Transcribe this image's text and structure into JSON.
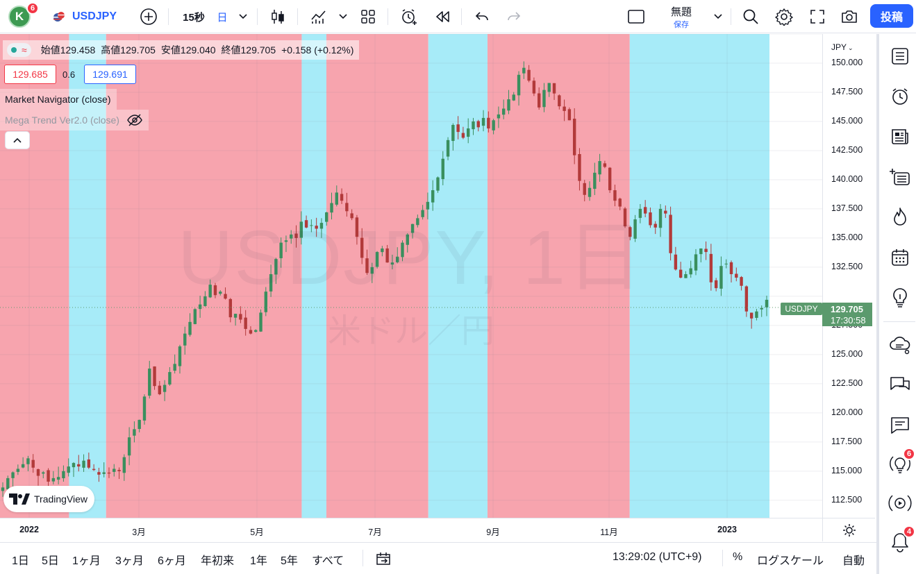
{
  "toolbar": {
    "avatar_letter": "K",
    "avatar_badge": "6",
    "symbol": "USDJPY",
    "interval": "15秒",
    "chart_day": "日",
    "layout_title": "無題",
    "save_label": "保存",
    "publish_label": "投稿"
  },
  "legend": {
    "open_label": "始値",
    "open": "129.458",
    "high_label": "高値",
    "high": "129.705",
    "low_label": "安値",
    "low": "129.040",
    "close_label": "終値",
    "close": "129.705",
    "change": "+0.158 (+0.12%)",
    "bid": "129.685",
    "spread": "0.6",
    "ask": "129.691",
    "indicator1": "Market Navigator (close)",
    "indicator2": "Mega Trend Ver2.0 (close)"
  },
  "watermark": {
    "main": "USDJPY, 1日",
    "sub": "米ドル／円"
  },
  "logo_text": "TradingView",
  "price_axis": {
    "currency": "JPY",
    "ticks": [
      "150.000",
      "147.500",
      "145.000",
      "142.500",
      "140.000",
      "137.500",
      "135.000",
      "132.500",
      "127.500",
      "125.000",
      "122.500",
      "120.000",
      "117.500",
      "115.000",
      "112.500"
    ],
    "last_price": "129.705",
    "countdown": "17:30:58",
    "symbol_tag": "USDJPY"
  },
  "time_axis": {
    "ticks": [
      "2022",
      "3月",
      "5月",
      "7月",
      "9月",
      "11月",
      "2023"
    ]
  },
  "bottom": {
    "ranges": [
      "1日",
      "5日",
      "1ヶ月",
      "3ヶ月",
      "6ヶ月",
      "年初来",
      "1年",
      "5年",
      "すべて"
    ],
    "clock": "13:29:02 (UTC+9)",
    "percent": "%",
    "log_scale": "ログスケール",
    "auto": "自動"
  },
  "sidebar": {
    "ideas_badge": "6",
    "alerts_badge": "4"
  },
  "colors": {
    "bull": "#26a69a",
    "candle_up": "#3a8f5e",
    "candle_down": "#b23a3a",
    "red_zone": "#f7a4ae",
    "blue_zone": "#a7ebf8",
    "accent": "#2962ff"
  },
  "chart_data": {
    "type": "candlestick",
    "ylim": [
      111.0,
      152.5
    ],
    "zones": [
      {
        "from": 0.0,
        "to": 0.084,
        "color": "red"
      },
      {
        "from": 0.084,
        "to": 0.129,
        "color": "blue"
      },
      {
        "from": 0.129,
        "to": 0.367,
        "color": "red"
      },
      {
        "from": 0.367,
        "to": 0.397,
        "color": "blue"
      },
      {
        "from": 0.397,
        "to": 0.521,
        "color": "red"
      },
      {
        "from": 0.521,
        "to": 0.593,
        "color": "blue"
      },
      {
        "from": 0.593,
        "to": 0.766,
        "color": "red"
      },
      {
        "from": 0.766,
        "to": 0.936,
        "color": "blue"
      }
    ],
    "closes": [
      113.6,
      114.4,
      114.9,
      115.2,
      115.6,
      116.1,
      115.3,
      114.6,
      114.9,
      114.1,
      114.4,
      114.5,
      115.0,
      115.4,
      115.7,
      115.4,
      115.9,
      115.3,
      115.1,
      114.7,
      114.9,
      114.8,
      115.2,
      115.0,
      116.2,
      117.9,
      118.6,
      119.4,
      121.4,
      123.8,
      122.3,
      121.6,
      122.4,
      123.5,
      124.2,
      125.7,
      126.8,
      127.8,
      128.9,
      129.3,
      130.0,
      131.0,
      130.1,
      130.4,
      129.8,
      128.2,
      128.5,
      128.0,
      127.2,
      126.8,
      127.1,
      128.6,
      130.4,
      131.9,
      133.2,
      134.6,
      134.8,
      135.3,
      135.0,
      136.4,
      135.9,
      136.1,
      135.8,
      136.3,
      137.2,
      138.0,
      138.9,
      138.2,
      137.3,
      136.7,
      135.1,
      133.3,
      132.0,
      132.5,
      133.8,
      134.1,
      132.9,
      132.9,
      133.4,
      134.6,
      135.3,
      136.2,
      136.7,
      137.4,
      138.1,
      139.1,
      140.2,
      141.8,
      143.4,
      144.7,
      144.1,
      143.6,
      144.4,
      145.0,
      144.5,
      145.3,
      144.4,
      145.1,
      145.6,
      146.1,
      146.9,
      147.3,
      149.0,
      149.6,
      148.5,
      147.4,
      146.2,
      147.7,
      148.3,
      147.4,
      146.3,
      145.9,
      145.1,
      142.1,
      139.9,
      138.7,
      139.3,
      140.6,
      141.6,
      141.1,
      139.1,
      138.2,
      137.7,
      136.0,
      135.1,
      136.6,
      137.5,
      137.1,
      136.1,
      135.9,
      137.5,
      137.1,
      133.7,
      132.3,
      131.6,
      131.9,
      132.4,
      133.6,
      134.1,
      133.8,
      131.2,
      130.7,
      132.6,
      132.8,
      131.9,
      131.6,
      130.9,
      128.7,
      128.1,
      128.7,
      129.0,
      129.7
    ]
  }
}
